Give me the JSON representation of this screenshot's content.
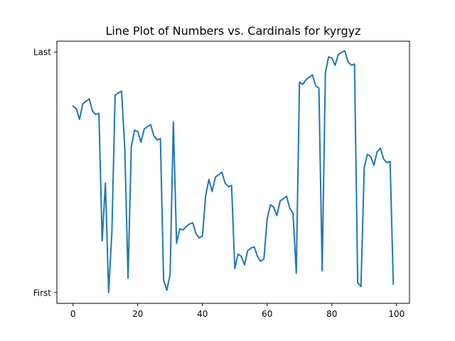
{
  "chart_data": {
    "type": "line",
    "title": "Line Plot of Numbers vs. Cardinals for kyrgyz",
    "xlabel": "",
    "ylabel": "",
    "xlim": [
      -5,
      104
    ],
    "ylim": [
      -0.045,
      1.045
    ],
    "x_ticks": [
      0,
      20,
      40,
      60,
      80,
      100
    ],
    "x_tick_labels": [
      "0",
      "20",
      "40",
      "60",
      "80",
      "100"
    ],
    "y_ticks": [
      0,
      1
    ],
    "y_tick_labels": [
      "First",
      "Last"
    ],
    "grid": false,
    "series": [
      {
        "name": "kyrgyz",
        "color": "#1f77b4",
        "x": [
          0,
          1,
          2,
          3,
          4,
          5,
          6,
          7,
          8,
          9,
          10,
          11,
          12,
          13,
          14,
          15,
          16,
          17,
          18,
          19,
          20,
          21,
          22,
          23,
          24,
          25,
          26,
          27,
          28,
          29,
          30,
          31,
          32,
          33,
          34,
          35,
          36,
          37,
          38,
          39,
          40,
          41,
          42,
          43,
          44,
          45,
          46,
          47,
          48,
          49,
          50,
          51,
          52,
          53,
          54,
          55,
          56,
          57,
          58,
          59,
          60,
          61,
          62,
          63,
          64,
          65,
          66,
          67,
          68,
          69,
          70,
          71,
          72,
          73,
          74,
          75,
          76,
          77,
          78,
          79,
          80,
          81,
          82,
          83,
          84,
          85,
          86,
          87,
          88,
          89,
          90,
          91,
          92,
          93,
          94,
          95,
          96,
          97,
          98,
          99
        ],
        "values": [
          0.775,
          0.765,
          0.72,
          0.785,
          0.795,
          0.805,
          0.755,
          0.74,
          0.745,
          0.215,
          0.455,
          0.0,
          0.25,
          0.82,
          0.83,
          0.837,
          0.595,
          0.06,
          0.605,
          0.675,
          0.67,
          0.625,
          0.68,
          0.69,
          0.698,
          0.65,
          0.635,
          0.64,
          0.05,
          0.01,
          0.075,
          0.71,
          0.205,
          0.265,
          0.26,
          0.275,
          0.285,
          0.29,
          0.245,
          0.227,
          0.235,
          0.405,
          0.47,
          0.42,
          0.48,
          0.49,
          0.5,
          0.455,
          0.44,
          0.445,
          0.1,
          0.16,
          0.15,
          0.115,
          0.175,
          0.185,
          0.19,
          0.15,
          0.13,
          0.14,
          0.305,
          0.365,
          0.355,
          0.32,
          0.38,
          0.39,
          0.4,
          0.35,
          0.33,
          0.08,
          0.875,
          0.865,
          0.885,
          0.895,
          0.905,
          0.86,
          0.85,
          0.09,
          0.915,
          0.98,
          0.975,
          0.945,
          0.99,
          0.998,
          1.005,
          0.96,
          0.945,
          0.95,
          0.04,
          0.025,
          0.52,
          0.575,
          0.565,
          0.53,
          0.585,
          0.6,
          0.555,
          0.54,
          0.545,
          0.035
        ]
      }
    ]
  }
}
